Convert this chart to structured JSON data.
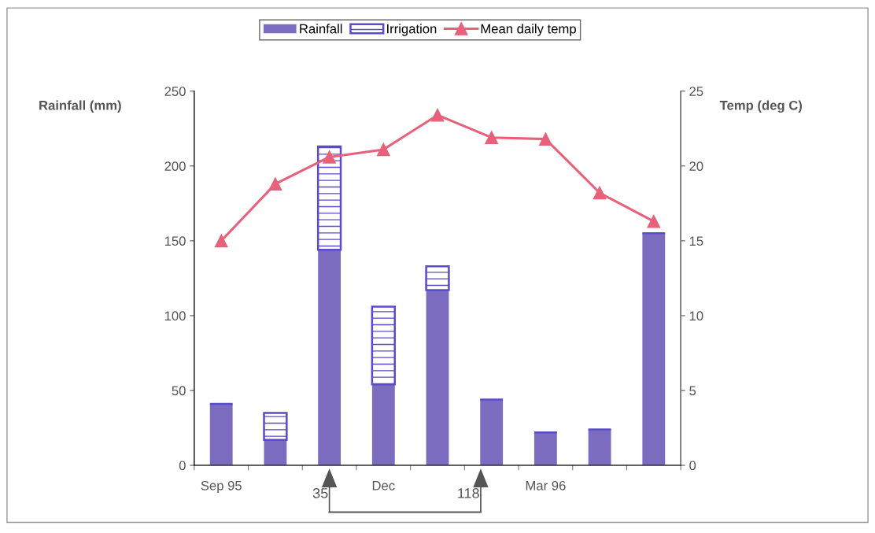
{
  "chart_data": {
    "type": "bar",
    "stacked": true,
    "categories": [
      "Sep 95",
      null,
      null,
      "Dec",
      null,
      null,
      "Mar 96",
      null,
      null
    ],
    "series": [
      {
        "name": "Rainfall",
        "color": "#7b6cc0",
        "values": [
          41,
          17,
          144,
          54,
          117,
          44,
          22,
          24,
          155
        ]
      },
      {
        "name": "Irrigation",
        "color": "#5a4bc8",
        "values": [
          0,
          18,
          69,
          52,
          16,
          0,
          0,
          0,
          0
        ]
      },
      {
        "name": "Mean daily temp",
        "type": "line",
        "axis": "y2",
        "color": "#e8607a",
        "marker": "triangle",
        "values": [
          15.0,
          18.8,
          20.6,
          21.1,
          23.4,
          21.9,
          21.8,
          18.2,
          16.3
        ]
      }
    ],
    "ylabel": "Rainfall (mm)",
    "y2label": "Temp (deg C)",
    "ylim": [
      0,
      250
    ],
    "yticks": [
      0,
      50,
      100,
      150,
      200,
      250
    ],
    "y2lim": [
      0,
      25
    ],
    "y2ticks": [
      0,
      5,
      10,
      15,
      20,
      25
    ],
    "annotations": [
      "35",
      "118"
    ],
    "legend": "top",
    "grid": false
  }
}
